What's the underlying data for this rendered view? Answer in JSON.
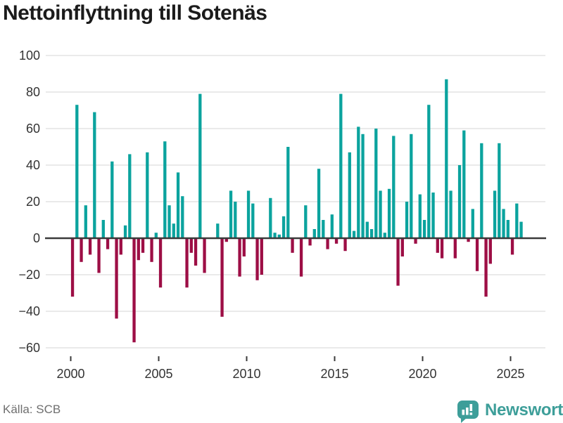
{
  "title": "Nettoinflyttning till Sotenäs",
  "source": {
    "label": "Källa: SCB"
  },
  "brand": {
    "name": "Newsworthy",
    "logo_icon": "bar-chart-speech-bubble",
    "color": "#3d9e99"
  },
  "colors": {
    "positive_bar": "#0ba39e",
    "negative_bar": "#9d0e45",
    "gridline": "#e3e3e3",
    "zero_axis": "#3a3a3a",
    "axis_text": "#333333",
    "title_text": "#1b1b1b",
    "source_text": "#6f6f6f",
    "background": "#ffffff"
  },
  "chart_data": {
    "type": "bar",
    "title": "Nettoinflyttning till Sotenäs",
    "xlabel": "",
    "ylabel": "",
    "frequency": "quarterly",
    "start_year": 2000,
    "start_quarter": 1,
    "end_year": 2025,
    "end_quarter": 3,
    "ylim": [
      -60,
      100
    ],
    "grid": true,
    "legend": false,
    "y_ticks": [
      100,
      80,
      60,
      40,
      20,
      0,
      -20,
      -40,
      -60
    ],
    "x_tick_years": [
      "2000",
      "2005",
      "2010",
      "2015",
      "2020",
      "2025"
    ],
    "values": [
      -32,
      73,
      -13,
      18,
      -9,
      69,
      -19,
      10,
      -6,
      42,
      -44,
      -9,
      7,
      46,
      -57,
      -12,
      -8,
      47,
      -13,
      3,
      -27,
      53,
      18,
      8,
      36,
      23,
      -27,
      -8,
      -15,
      79,
      -19,
      0,
      0,
      8,
      -43,
      -2,
      26,
      20,
      -21,
      -10,
      26,
      19,
      -23,
      -20,
      0,
      22,
      3,
      2,
      12,
      50,
      -8,
      0,
      -21,
      18,
      -4,
      5,
      38,
      10,
      -6,
      13,
      -3,
      79,
      -7,
      47,
      4,
      61,
      57,
      9,
      5,
      60,
      26,
      3,
      27,
      56,
      -26,
      -10,
      20,
      57,
      -3,
      24,
      10,
      73,
      25,
      -8,
      -11,
      87,
      26,
      -11,
      40,
      59,
      -2,
      16,
      -18,
      52,
      -32,
      -14,
      26,
      52,
      16,
      10,
      -9,
      19,
      9
    ]
  }
}
